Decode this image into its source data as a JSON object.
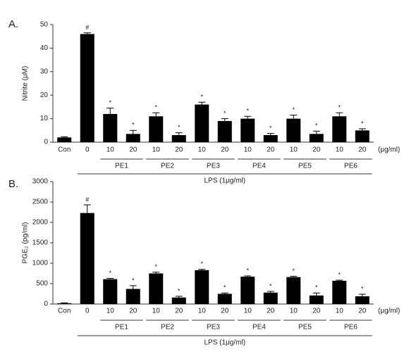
{
  "chart_data": [
    {
      "type": "bar",
      "panel_label": "A.",
      "ylabel": "Nitrite (μM)",
      "categories": [
        "Con",
        "0",
        "10",
        "20",
        "10",
        "20",
        "10",
        "20",
        "10",
        "20",
        "10",
        "20",
        "10",
        "20"
      ],
      "values": [
        2,
        46,
        12,
        3.5,
        11,
        3,
        16,
        9,
        10,
        3,
        10,
        3.5,
        11,
        5
      ],
      "errors": [
        0.3,
        0.5,
        2.5,
        1.5,
        1.5,
        1,
        1,
        1,
        1,
        0.7,
        1.5,
        1.2,
        1.5,
        0.7
      ],
      "markers": [
        null,
        "#",
        "*",
        "*",
        "*",
        "*",
        "*",
        "*",
        "*",
        "*",
        "*",
        "*",
        "*",
        "*"
      ],
      "groups": [
        "PE1",
        "PE2",
        "PE3",
        "PE4",
        "PE5",
        "PE6"
      ],
      "group_label": "LPS (1μg/ml)",
      "x_unit": "(μg/ml)",
      "color": "#000000",
      "ylim": [
        0,
        50
      ],
      "yticks": [
        0,
        10,
        20,
        30,
        40,
        50
      ]
    },
    {
      "type": "bar",
      "panel_label": "B.",
      "ylabel": "PGE₂ (pg/ml)",
      "categories": [
        "Con",
        "0",
        "10",
        "20",
        "10",
        "20",
        "10",
        "20",
        "10",
        "20",
        "10",
        "20",
        "10",
        "20"
      ],
      "values": [
        20,
        2230,
        610,
        370,
        750,
        160,
        830,
        250,
        670,
        280,
        660,
        210,
        570,
        190
      ],
      "errors": [
        10,
        200,
        20,
        80,
        30,
        30,
        20,
        20,
        20,
        30,
        20,
        60,
        15,
        50
      ],
      "markers": [
        null,
        "#",
        "*",
        "*",
        "*",
        "*",
        "*",
        "*",
        "*",
        "*",
        "*",
        "*",
        "*",
        "*"
      ],
      "groups": [
        "PE1",
        "PE2",
        "PE3",
        "PE4",
        "PE5",
        "PE6"
      ],
      "group_label": "LPS (1μg/ml)",
      "x_unit": "(μg/ml)",
      "color": "#000000",
      "ylim": [
        0,
        3000
      ],
      "yticks": [
        0,
        500,
        1000,
        1500,
        2000,
        2500,
        3000
      ]
    }
  ]
}
